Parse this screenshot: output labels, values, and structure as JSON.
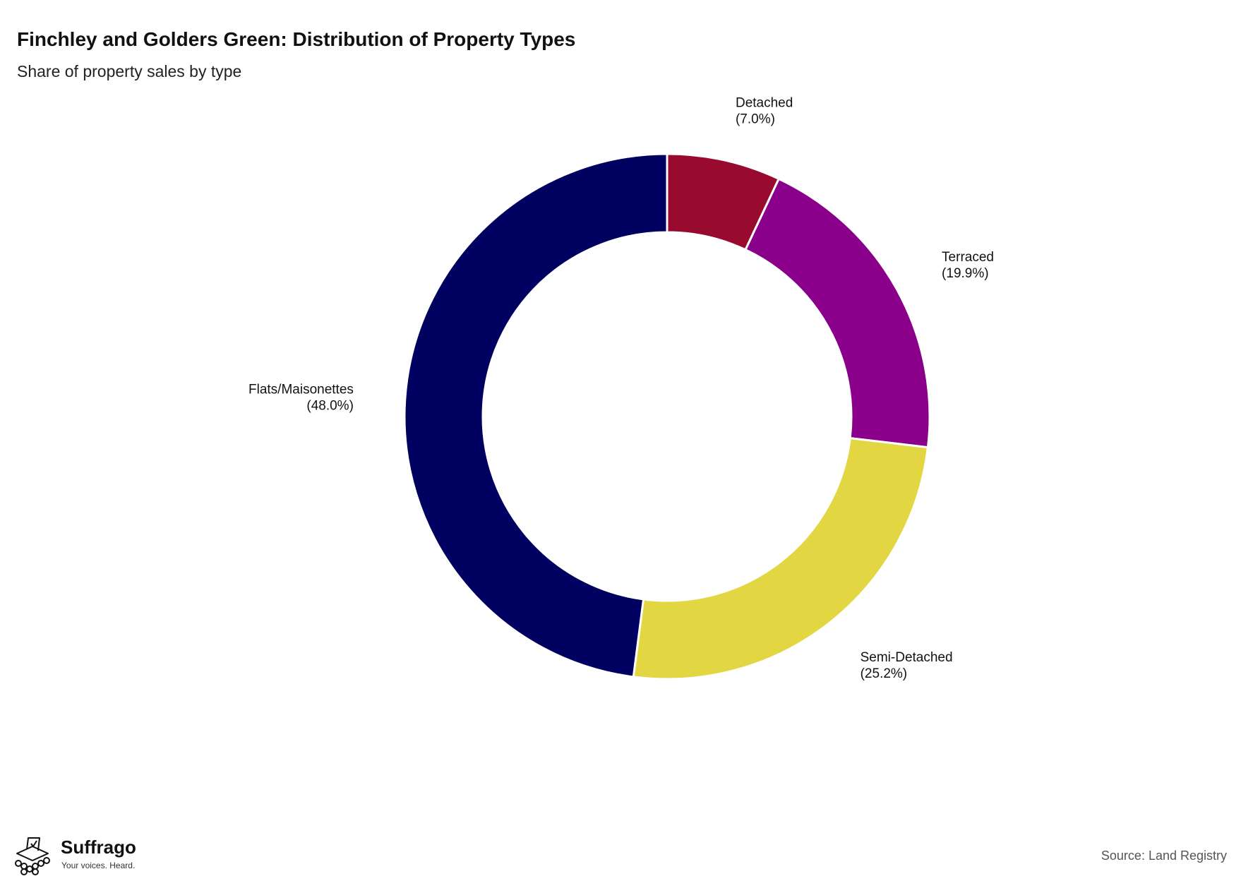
{
  "header": {
    "title": "Finchley and Golders Green: Distribution of Property Types",
    "subtitle": "Share of property sales by type"
  },
  "footer": {
    "source": "Source: Land Registry",
    "brand_name": "Suffrago",
    "brand_tagline": "Your voices. Heard."
  },
  "chart_data": {
    "type": "pie",
    "variant": "donut",
    "title": "Finchley and Golders Green: Distribution of Property Types",
    "subtitle": "Share of property sales by type",
    "unit": "%",
    "start_angle_deg": 0,
    "direction": "clockwise",
    "slices": [
      {
        "label": "Detached",
        "value": 7.0,
        "display": "(7.0%)",
        "color": "#990a2f"
      },
      {
        "label": "Terraced",
        "value": 19.9,
        "display": "(19.9%)",
        "color": "#8a008a"
      },
      {
        "label": "Semi-Detached",
        "value": 25.2,
        "display": "(25.2%)",
        "color": "#e2d742"
      },
      {
        "label": "Flats/Maisonettes",
        "value": 48.0,
        "display": "(48.0%)",
        "color": "#000060"
      }
    ]
  }
}
